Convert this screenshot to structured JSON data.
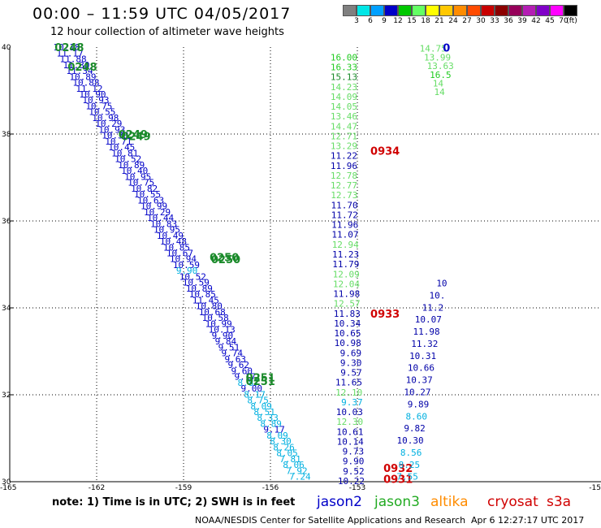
{
  "title": "00:00 – 11:59 UTC 04/05/2017",
  "subtitle": "12 hour collection of altimeter wave heights",
  "colorbar": {
    "colors": [
      "#808080",
      "#00e6e6",
      "#00a0ff",
      "#0000c8",
      "#00c800",
      "#64ff64",
      "#ffff00",
      "#ffc800",
      "#ff8c00",
      "#ff4b00",
      "#c80000",
      "#8b0000",
      "#96005a",
      "#b41eb4",
      "#8000c8",
      "#ff00ff",
      "#000000"
    ],
    "labels": [
      "3",
      "6",
      "9",
      "12",
      "15",
      "18",
      "21",
      "24",
      "27",
      "30",
      "33",
      "36",
      "39",
      "42",
      "45",
      "70",
      "(ft)"
    ]
  },
  "axes": {
    "y_ticks": [
      "40",
      "38",
      "36",
      "34",
      "32",
      "30"
    ],
    "x_ticks": [
      "-165",
      "-162",
      "-159",
      "-156",
      "-153",
      "-15"
    ]
  },
  "sat_colors": {
    "jason2": "#0000c8",
    "jason3": "#22aa22",
    "altika": "#ff8c00",
    "cryosat": "#d00000",
    "s3a": "#d00000"
  },
  "swath_colors": {
    "b1": "#22cc22",
    "b2": "#1a8a2a",
    "b3": "#0000a8",
    "b4": "#00b0e0"
  },
  "track_a": [
    {
      "t": "10.18",
      "c": "#0000c8"
    },
    {
      "t": "11.17",
      "c": "#0000c8"
    },
    {
      "t": "11.88",
      "c": "#0000c8"
    },
    {
      "t": "11.30",
      "c": "#0000c8"
    },
    {
      "t": "11.34",
      "c": "#0000c8"
    },
    {
      "t": "10.89",
      "c": "#0000c8"
    },
    {
      "t": "10.88",
      "c": "#0000c8"
    },
    {
      "t": "11.12",
      "c": "#0000c8"
    },
    {
      "t": "10.90",
      "c": "#0000c8"
    },
    {
      "t": "10.93",
      "c": "#0000c8"
    },
    {
      "t": "10.75",
      "c": "#0000c8"
    },
    {
      "t": "10.55",
      "c": "#0000c8"
    },
    {
      "t": "10.98",
      "c": "#0000c8"
    },
    {
      "t": "10.29",
      "c": "#0000c8"
    },
    {
      "t": "10.93",
      "c": "#0000c8"
    },
    {
      "t": "10.38",
      "c": "#0000c8"
    },
    {
      "t": "10.71",
      "c": "#0000c8"
    },
    {
      "t": "10.45",
      "c": "#0000c8"
    },
    {
      "t": "10.81",
      "c": "#0000c8"
    },
    {
      "t": "10.52",
      "c": "#0000c8"
    },
    {
      "t": "10.89",
      "c": "#0000c8"
    },
    {
      "t": "10.40",
      "c": "#0000c8"
    },
    {
      "t": "10.95",
      "c": "#0000c8"
    },
    {
      "t": "10.75",
      "c": "#0000c8"
    },
    {
      "t": "10.82",
      "c": "#0000c8"
    },
    {
      "t": "10.55",
      "c": "#0000c8"
    },
    {
      "t": "10.63",
      "c": "#0000c8"
    },
    {
      "t": "10.99",
      "c": "#0000c8"
    },
    {
      "t": "10.29",
      "c": "#0000c8"
    },
    {
      "t": "10.44",
      "c": "#0000c8"
    },
    {
      "t": "10.83",
      "c": "#0000c8"
    },
    {
      "t": "10.95",
      "c": "#0000c8"
    },
    {
      "t": "10.49",
      "c": "#0000c8"
    },
    {
      "t": "10.48",
      "c": "#0000c8"
    },
    {
      "t": "10.85",
      "c": "#0000c8"
    },
    {
      "t": "10.67",
      "c": "#0000c8"
    },
    {
      "t": "10.94",
      "c": "#0000c8"
    },
    {
      "t": "10.59",
      "c": "#0000c8"
    },
    {
      "t": "9.90",
      "c": "#00b0e0"
    },
    {
      "t": "10.52",
      "c": "#0000c8"
    },
    {
      "t": "10.59",
      "c": "#0000c8"
    },
    {
      "t": "10.89",
      "c": "#0000c8"
    },
    {
      "t": "10.85",
      "c": "#0000c8"
    },
    {
      "t": "11.45",
      "c": "#0000c8"
    },
    {
      "t": "10.80",
      "c": "#0000c8"
    },
    {
      "t": "10.68",
      "c": "#0000c8"
    },
    {
      "t": "10.58",
      "c": "#0000c8"
    },
    {
      "t": "10.99",
      "c": "#0000c8"
    },
    {
      "t": "10.13",
      "c": "#0000c8"
    },
    {
      "t": "9.90",
      "c": "#0000c8"
    },
    {
      "t": "9.84",
      "c": "#0000c8"
    },
    {
      "t": "9.51",
      "c": "#0000c8"
    },
    {
      "t": "9.74",
      "c": "#0000c8"
    },
    {
      "t": "9.63",
      "c": "#0000c8"
    },
    {
      "t": "9.62",
      "c": "#0000c8"
    },
    {
      "t": "9.60",
      "c": "#0000c8"
    },
    {
      "t": "9.17",
      "c": "#0000c8"
    },
    {
      "t": "8.87",
      "c": "#00b0e0"
    },
    {
      "t": "9.00",
      "c": "#0000c8"
    },
    {
      "t": "8.17",
      "c": "#00b0e0"
    },
    {
      "t": "8.75",
      "c": "#00b0e0"
    },
    {
      "t": "8.09",
      "c": "#00b0e0"
    },
    {
      "t": "8.51",
      "c": "#00b0e0"
    },
    {
      "t": "8.33",
      "c": "#00b0e0"
    },
    {
      "t": "8.89",
      "c": "#00b0e0"
    },
    {
      "t": "9.17",
      "c": "#0000c8"
    },
    {
      "t": "8.09",
      "c": "#00b0e0"
    },
    {
      "t": "8.30",
      "c": "#00b0e0"
    },
    {
      "t": "8.26",
      "c": "#00b0e0"
    },
    {
      "t": "8.05",
      "c": "#00b0e0"
    },
    {
      "t": "7.81",
      "c": "#00b0e0"
    },
    {
      "t": "8.06",
      "c": "#00b0e0"
    },
    {
      "t": "7.92",
      "c": "#00b0e0"
    },
    {
      "t": "7.24",
      "c": "#00b0e0"
    }
  ],
  "track_a_times": [
    {
      "t": "0248",
      "lat": 39.98,
      "lon": -163.45
    },
    {
      "t": "0248",
      "lat": 39.53,
      "lon": -163.0
    },
    {
      "t": "0249",
      "lat": 37.98,
      "lon": -161.25
    },
    {
      "t": "0249",
      "lat": 37.93,
      "lon": -161.15
    },
    {
      "t": "0250",
      "lat": 35.15,
      "lon": -158.1
    },
    {
      "t": "0250",
      "lat": 35.1,
      "lon": -158.05
    },
    {
      "t": "0251",
      "lat": 32.38,
      "lon": -156.85
    },
    {
      "t": "0251",
      "lat": 32.3,
      "lon": -156.85
    }
  ],
  "track_b": [
    {
      "t": "16.00",
      "c": "#22cc22"
    },
    {
      "t": "16.33",
      "c": "#22cc22"
    },
    {
      "t": "15.13",
      "c": "#1a8a2a"
    },
    {
      "t": "14.23",
      "c": "#66dd66"
    },
    {
      "t": "14.09",
      "c": "#66dd66"
    },
    {
      "t": "14.05",
      "c": "#66dd66"
    },
    {
      "t": "13.46",
      "c": "#66dd66"
    },
    {
      "t": "14.47",
      "c": "#66dd66"
    },
    {
      "t": "12.71",
      "c": "#66dd66"
    },
    {
      "t": "13.29",
      "c": "#66dd66"
    },
    {
      "t": "11.22",
      "c": "#0000a8"
    },
    {
      "t": "11.96",
      "c": "#0000a8"
    },
    {
      "t": "12.78",
      "c": "#66dd66"
    },
    {
      "t": "12.77",
      "c": "#66dd66"
    },
    {
      "t": "12.73",
      "c": "#66dd66"
    },
    {
      "t": "11.70",
      "c": "#0000a8"
    },
    {
      "t": "11.72",
      "c": "#0000a8"
    },
    {
      "t": "11.96",
      "c": "#0000a8"
    },
    {
      "t": "11.07",
      "c": "#0000a8"
    },
    {
      "t": "12.94",
      "c": "#66dd66"
    },
    {
      "t": "11.23",
      "c": "#0000a8"
    },
    {
      "t": "11.79",
      "c": "#0000a8"
    },
    {
      "t": "12.09",
      "c": "#66dd66"
    },
    {
      "t": "12.04",
      "c": "#66dd66"
    },
    {
      "t": "11.98",
      "c": "#0000a8"
    },
    {
      "t": "12.57",
      "c": "#66dd66"
    },
    {
      "t": "11.83",
      "c": "#0000a8"
    },
    {
      "t": "10.34",
      "c": "#0000a8"
    },
    {
      "t": "10.65",
      "c": "#0000a8"
    },
    {
      "t": "10.98",
      "c": "#0000a8"
    },
    {
      "t": "9.69",
      "c": "#0000a8"
    },
    {
      "t": "9.30",
      "c": "#0000a8"
    },
    {
      "t": "9.57",
      "c": "#0000a8"
    },
    {
      "t": "11.65",
      "c": "#0000a8"
    },
    {
      "t": "12.10",
      "c": "#66dd66"
    },
    {
      "t": "9.37",
      "c": "#00b0e0"
    },
    {
      "t": "10.03",
      "c": "#0000a8"
    },
    {
      "t": "12.30",
      "c": "#66dd66"
    },
    {
      "t": "10.61",
      "c": "#0000a8"
    },
    {
      "t": "10.14",
      "c": "#0000a8"
    },
    {
      "t": "9.73",
      "c": "#0000a8"
    },
    {
      "t": "9.90",
      "c": "#0000a8"
    },
    {
      "t": "9.52",
      "c": "#0000a8"
    },
    {
      "t": "10.22",
      "c": "#0000a8"
    }
  ],
  "track_b_times": [
    {
      "t": "0934",
      "lat": 37.6,
      "lon": -152.55
    },
    {
      "t": "0933",
      "lat": 33.85,
      "lon": -152.55
    },
    {
      "t": "0932",
      "lat": 30.3,
      "lon": -152.1
    },
    {
      "t": "0931",
      "lat": 30.05,
      "lon": -152.1
    }
  ],
  "track_c": [
    {
      "t": "14.75",
      "c": "#66dd66"
    },
    {
      "t": "13.99",
      "c": "#66dd66"
    },
    {
      "t": "13.63",
      "c": "#66dd66"
    },
    {
      "t": "16.5",
      "c": "#22cc22"
    },
    {
      "t": "14",
      "c": "#66dd66"
    },
    {
      "t": "14",
      "c": "#66dd66"
    }
  ],
  "track_c_edge": "0",
  "track_d": [
    {
      "t": "10",
      "c": "#0000a8"
    },
    {
      "t": "10.",
      "c": "#0000a8"
    },
    {
      "t": "11.2",
      "c": "#0000a8"
    },
    {
      "t": "10.07",
      "c": "#0000a8"
    },
    {
      "t": "11.98",
      "c": "#0000a8"
    },
    {
      "t": "11.32",
      "c": "#0000a8"
    },
    {
      "t": "10.31",
      "c": "#0000a8"
    },
    {
      "t": "10.66",
      "c": "#0000a8"
    },
    {
      "t": "10.37",
      "c": "#0000a8"
    },
    {
      "t": "10.27",
      "c": "#0000a8"
    },
    {
      "t": "9.89",
      "c": "#0000a8"
    },
    {
      "t": "8.60",
      "c": "#00b0e0"
    },
    {
      "t": "9.82",
      "c": "#0000a8"
    },
    {
      "t": "10.30",
      "c": "#0000a8"
    },
    {
      "t": "8.56",
      "c": "#00b0e0"
    },
    {
      "t": "8.25",
      "c": "#00b0e0"
    },
    {
      "t": "7.55",
      "c": "#00b0e0"
    }
  ],
  "note": "note:  1) Time is in UTC;  2) SWH is in feet",
  "legend": [
    "jason2",
    "jason3",
    "altika",
    "cryosat",
    "s3a"
  ],
  "footer": "NOAA/NESDIS Center for Satellite Applications and Research",
  "timestamp": "Apr  6 12:27:17 UTC 2017"
}
